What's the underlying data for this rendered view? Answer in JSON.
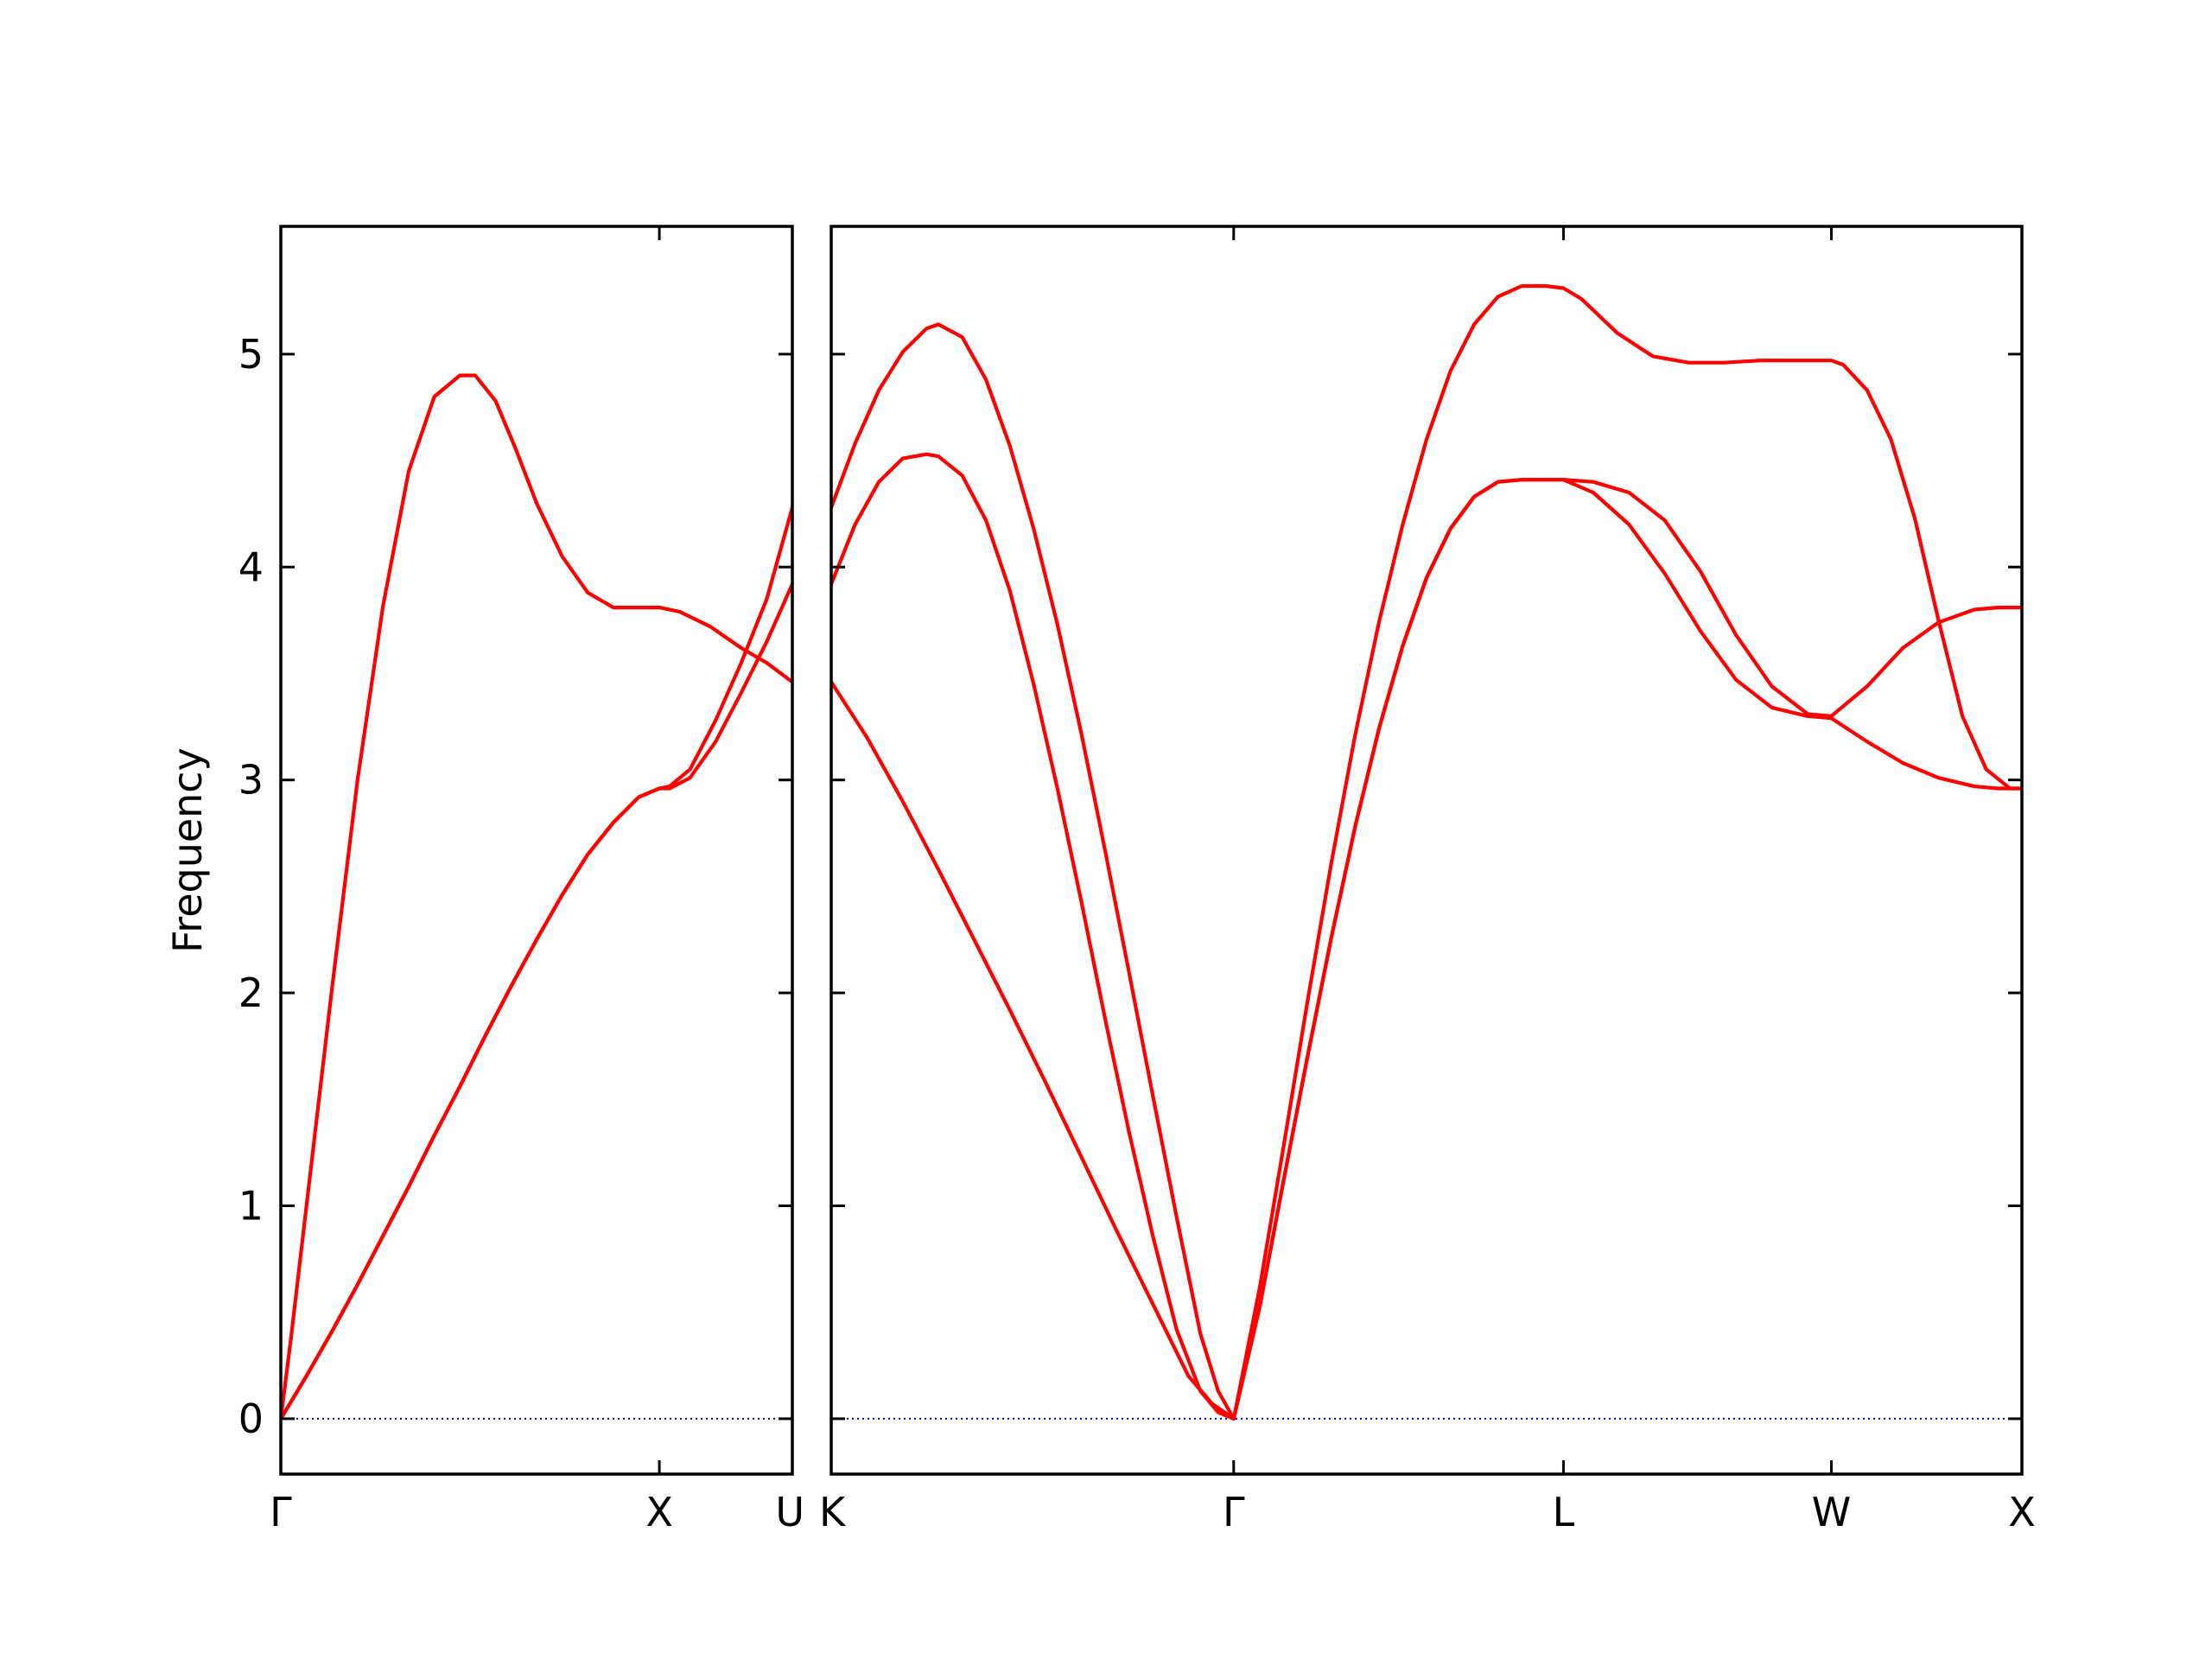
{
  "chart_data": {
    "type": "line",
    "ylabel": "Frequency",
    "ylim": [
      -0.26,
      5.6
    ],
    "yticks": [
      "0",
      "1",
      "2",
      "3",
      "4",
      "5"
    ],
    "grid": false,
    "colors": {
      "bands": "#ff0000",
      "zero_line": "#0000cc",
      "axes": "#000000"
    },
    "panels": [
      {
        "xlim": [
          0,
          1
        ],
        "xticks": [
          {
            "label": "Γ",
            "x": 0
          },
          {
            "label": "X",
            "x": 0.74
          },
          {
            "label": "U",
            "x": 1
          }
        ],
        "series": [
          {
            "x": [
              0,
              0.02,
              0.06,
              0.1,
              0.15,
              0.2,
              0.25,
              0.3,
              0.35,
              0.38,
              0.42,
              0.46,
              0.5,
              0.55,
              0.6,
              0.65,
              0.7,
              0.74,
              0.78,
              0.84,
              0.9,
              0.95,
              1.0
            ],
            "values": [
              0,
              0.38,
              1.2,
              2.02,
              3.0,
              3.82,
              4.45,
              4.8,
              4.9,
              4.9,
              4.78,
              4.55,
              4.3,
              4.05,
              3.88,
              3.81,
              3.81,
              3.81,
              3.79,
              3.72,
              3.62,
              3.55,
              3.46
            ]
          },
          {
            "x": [
              0,
              0.05,
              0.1,
              0.15,
              0.2,
              0.25,
              0.3,
              0.35,
              0.4,
              0.45,
              0.5,
              0.55,
              0.6,
              0.65,
              0.7,
              0.74,
              0.76,
              0.8,
              0.85,
              0.9,
              0.95,
              1.0
            ],
            "values": [
              0,
              0.2,
              0.41,
              0.63,
              0.86,
              1.09,
              1.33,
              1.56,
              1.8,
              2.03,
              2.25,
              2.46,
              2.65,
              2.8,
              2.92,
              2.96,
              2.97,
              3.05,
              3.28,
              3.55,
              3.85,
              4.28
            ]
          },
          {
            "x": [
              0,
              0.05,
              0.1,
              0.15,
              0.2,
              0.25,
              0.3,
              0.35,
              0.4,
              0.45,
              0.5,
              0.55,
              0.6,
              0.65,
              0.7,
              0.74,
              0.76,
              0.8,
              0.85,
              0.9,
              0.95,
              1.0
            ],
            "values": [
              0,
              0.2,
              0.41,
              0.63,
              0.86,
              1.09,
              1.33,
              1.56,
              1.8,
              2.03,
              2.25,
              2.46,
              2.65,
              2.8,
              2.92,
              2.96,
              2.96,
              3.01,
              3.18,
              3.41,
              3.65,
              3.92
            ]
          }
        ]
      },
      {
        "xlim": [
          0,
          1
        ],
        "xticks": [
          {
            "label": "K",
            "x": 0
          },
          {
            "label": "Γ",
            "x": 0.338
          },
          {
            "label": "L",
            "x": 0.615
          },
          {
            "label": "W",
            "x": 0.84
          },
          {
            "label": "X",
            "x": 1
          }
        ],
        "series": [
          {
            "x": [
              0,
              0.02,
              0.04,
              0.06,
              0.08,
              0.09,
              0.11,
              0.13,
              0.15,
              0.17,
              0.19,
              0.21,
              0.23,
              0.25,
              0.27,
              0.29,
              0.31,
              0.325,
              0.338,
              0.36,
              0.38,
              0.4,
              0.42,
              0.44,
              0.46,
              0.48,
              0.5,
              0.52,
              0.54,
              0.56,
              0.58,
              0.6,
              0.615,
              0.63,
              0.66,
              0.69,
              0.72,
              0.75,
              0.78,
              0.81,
              0.84,
              0.85,
              0.87,
              0.89,
              0.91,
              0.93,
              0.95,
              0.97,
              0.99,
              1.0
            ],
            "values": [
              4.28,
              4.58,
              4.83,
              5.01,
              5.12,
              5.14,
              5.08,
              4.88,
              4.57,
              4.18,
              3.73,
              3.22,
              2.67,
              2.1,
              1.52,
              0.95,
              0.4,
              0.13,
              0,
              0.62,
              1.28,
              1.96,
              2.61,
              3.21,
              3.74,
              4.2,
              4.6,
              4.92,
              5.14,
              5.27,
              5.32,
              5.32,
              5.31,
              5.26,
              5.1,
              4.99,
              4.96,
              4.96,
              4.97,
              4.97,
              4.97,
              4.95,
              4.83,
              4.6,
              4.23,
              3.75,
              3.3,
              3.05,
              2.96,
              2.96
            ]
          },
          {
            "x": [
              0,
              0.02,
              0.04,
              0.06,
              0.08,
              0.09,
              0.11,
              0.13,
              0.15,
              0.17,
              0.19,
              0.21,
              0.23,
              0.25,
              0.27,
              0.29,
              0.31,
              0.325,
              0.338,
              0.36,
              0.38,
              0.4,
              0.42,
              0.44,
              0.46,
              0.48,
              0.5,
              0.52,
              0.54,
              0.56,
              0.58,
              0.6,
              0.615,
              0.64,
              0.67,
              0.7,
              0.73,
              0.76,
              0.79,
              0.82,
              0.84,
              0.87,
              0.9,
              0.93,
              0.96,
              0.98,
              1.0
            ],
            "values": [
              3.92,
              4.2,
              4.4,
              4.51,
              4.53,
              4.52,
              4.43,
              4.22,
              3.89,
              3.45,
              2.96,
              2.43,
              1.88,
              1.35,
              0.86,
              0.42,
              0.13,
              0.03,
              0,
              0.53,
              1.12,
              1.7,
              2.26,
              2.78,
              3.24,
              3.63,
              3.95,
              4.18,
              4.33,
              4.4,
              4.41,
              4.41,
              4.41,
              4.4,
              4.35,
              4.22,
              3.98,
              3.68,
              3.44,
              3.31,
              3.3,
              3.44,
              3.62,
              3.74,
              3.8,
              3.81,
              3.81
            ]
          },
          {
            "x": [
              0,
              0.03,
              0.06,
              0.09,
              0.12,
              0.15,
              0.18,
              0.21,
              0.24,
              0.27,
              0.3,
              0.32,
              0.338,
              0.36,
              0.38,
              0.4,
              0.42,
              0.44,
              0.46,
              0.48,
              0.5,
              0.52,
              0.54,
              0.56,
              0.58,
              0.6,
              0.615,
              0.64,
              0.67,
              0.7,
              0.73,
              0.76,
              0.79,
              0.82,
              0.84,
              0.87,
              0.9,
              0.93,
              0.96,
              0.98,
              1.0
            ],
            "values": [
              3.46,
              3.2,
              2.9,
              2.58,
              2.25,
              1.92,
              1.58,
              1.23,
              0.88,
              0.54,
              0.2,
              0.07,
              0,
              0.53,
              1.12,
              1.7,
              2.26,
              2.78,
              3.24,
              3.63,
              3.95,
              4.18,
              4.33,
              4.4,
              4.41,
              4.41,
              4.41,
              4.35,
              4.2,
              3.97,
              3.7,
              3.47,
              3.34,
              3.3,
              3.29,
              3.18,
              3.08,
              3.01,
              2.97,
              2.96,
              2.96
            ]
          }
        ]
      }
    ]
  }
}
